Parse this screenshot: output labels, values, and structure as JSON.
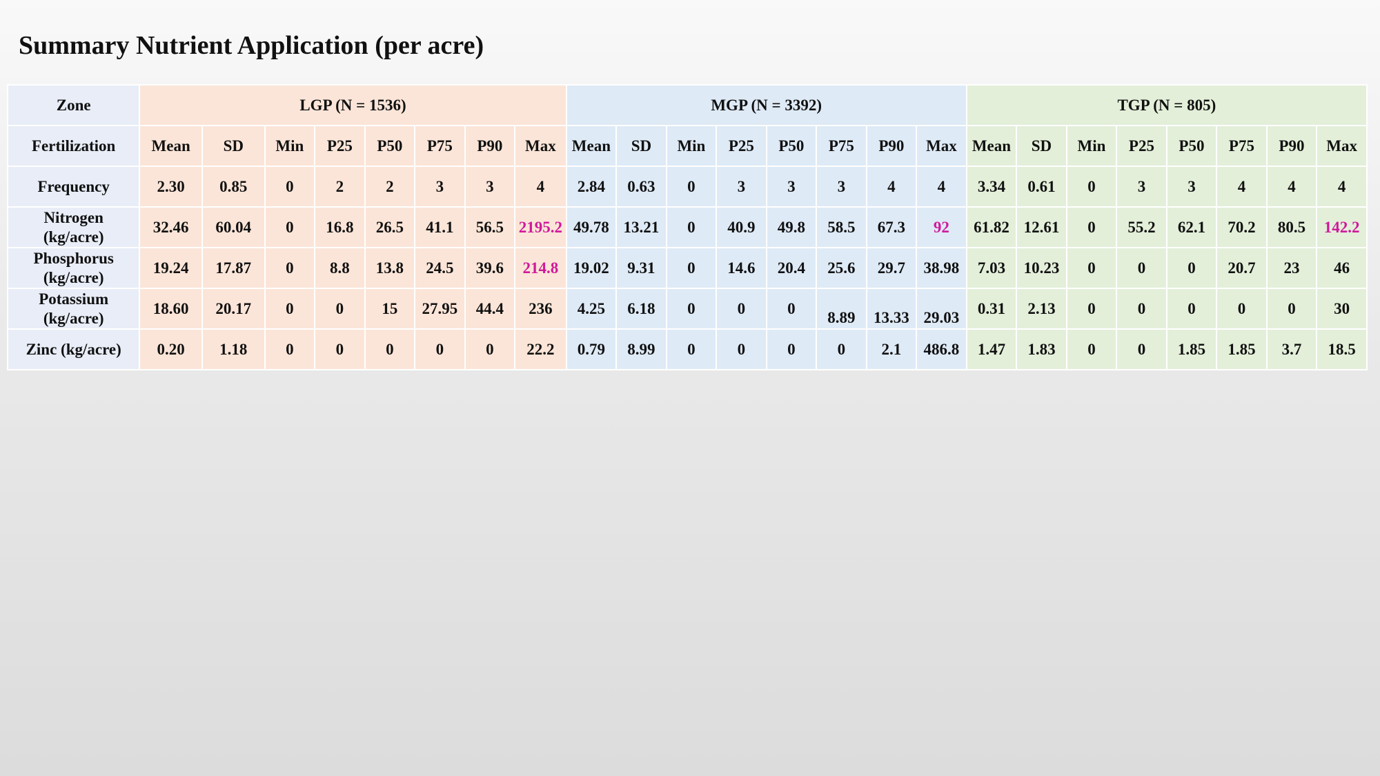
{
  "title": "Summary Nutrient Application (per acre)",
  "table": {
    "zone_label": "Zone",
    "fert_label": "Fertilization",
    "zones": [
      {
        "name": "LGP (N = 1536)",
        "key": "lgp"
      },
      {
        "name": "MGP (N = 3392)",
        "key": "mgp"
      },
      {
        "name": "TGP (N = 805)",
        "key": "tgp"
      }
    ],
    "stats": [
      "Mean",
      "SD",
      "Min",
      "P25",
      "P50",
      "P75",
      "P90",
      "Max"
    ],
    "highlight_color": "#d0199b",
    "colors": {
      "lgp": "#fbe5d8",
      "mgp": "#deeaf6",
      "tgp": "#e3efd9",
      "rowhead": "#e8edf7"
    },
    "rows": [
      {
        "label_lines": [
          "Frequency"
        ],
        "lgp": [
          "2.30",
          "0.85",
          "0",
          "2",
          "2",
          "3",
          "3",
          "4"
        ],
        "mgp": [
          "2.84",
          "0.63",
          "0",
          "3",
          "3",
          "3",
          "4",
          "4"
        ],
        "tgp": [
          "3.34",
          "0.61",
          "0",
          "3",
          "3",
          "4",
          "4",
          "4"
        ]
      },
      {
        "label_lines": [
          "Nitrogen",
          "(kg/acre)"
        ],
        "lgp": [
          "32.46",
          "60.04",
          "0",
          "16.8",
          "26.5",
          "41.1",
          "56.5",
          "2195.2"
        ],
        "mgp": [
          "49.78",
          "13.21",
          "0",
          "40.9",
          "49.8",
          "58.5",
          "67.3",
          "92"
        ],
        "tgp": [
          "61.82",
          "12.61",
          "0",
          "55.2",
          "62.1",
          "70.2",
          "80.5",
          "142.2"
        ],
        "highlight_max": true
      },
      {
        "label_lines": [
          "Phosphorus",
          "(kg/acre)"
        ],
        "lgp": [
          "19.24",
          "17.87",
          "0",
          "8.8",
          "13.8",
          "24.5",
          "39.6",
          "214.8"
        ],
        "mgp": [
          "19.02",
          "9.31",
          "0",
          "14.6",
          "20.4",
          "25.6",
          "29.7",
          "38.98"
        ],
        "tgp": [
          "7.03",
          "10.23",
          "0",
          "0",
          "0",
          "20.7",
          "23",
          "46"
        ],
        "highlight_lgp_max": true
      },
      {
        "label_lines": [
          "Potassium",
          "(kg/acre)"
        ],
        "lgp": [
          "18.60",
          "20.17",
          "0",
          "0",
          "15",
          "27.95",
          "44.4",
          "236"
        ],
        "mgp": [
          "4.25",
          "6.18",
          "0",
          "0",
          "0",
          "8.89",
          "13.33",
          "29.03"
        ],
        "tgp": [
          "0.31",
          "2.13",
          "0",
          "0",
          "0",
          "0",
          "0",
          "30"
        ]
      },
      {
        "label_lines": [
          "Zinc (kg/acre)"
        ],
        "lgp": [
          "0.20",
          "1.18",
          "0",
          "0",
          "0",
          "0",
          "0",
          "22.2"
        ],
        "mgp": [
          "0.79",
          "8.99",
          "0",
          "0",
          "0",
          "0",
          "2.1",
          "486.8"
        ],
        "tgp": [
          "1.47",
          "1.83",
          "0",
          "0",
          "1.85",
          "1.85",
          "3.7",
          "18.5"
        ]
      }
    ]
  }
}
